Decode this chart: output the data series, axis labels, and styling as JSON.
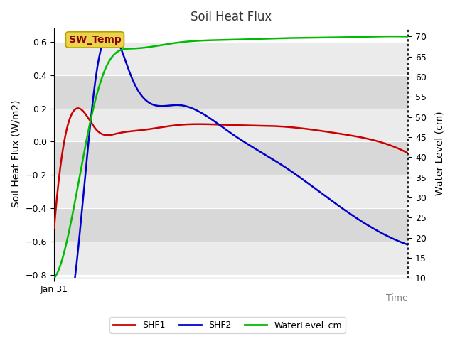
{
  "title": "Soil Heat Flux",
  "xlabel": "Time",
  "ylabel_left": "Soil Heat Flux (W/m2)",
  "ylabel_right": "Water Level (cm)",
  "x_tick_label": "Jan 31",
  "ylim_left": [
    -0.82,
    0.68
  ],
  "ylim_right": [
    10,
    72
  ],
  "yticks_left": [
    -0.8,
    -0.6,
    -0.4,
    -0.2,
    0.0,
    0.2,
    0.4,
    0.6
  ],
  "yticks_right": [
    10,
    15,
    20,
    25,
    30,
    35,
    40,
    45,
    50,
    55,
    60,
    65,
    70
  ],
  "annotation_text": "SW_Temp",
  "annotation_bg": "#e8d44d",
  "annotation_fg": "#8b0000",
  "annotation_edge": "#b8a000",
  "line_colors": {
    "SHF1": "#cc0000",
    "SHF2": "#0000cc",
    "WaterLevel_cm": "#00bb00"
  },
  "band_light": "#ebebeb",
  "band_dark": "#d8d8d8",
  "shf1_x": [
    0.0,
    0.07,
    0.12,
    0.18,
    0.25,
    0.35,
    0.5,
    0.65,
    0.8,
    0.9,
    1.0
  ],
  "shf1_y": [
    -0.52,
    0.2,
    0.07,
    0.05,
    0.07,
    0.1,
    0.1,
    0.09,
    0.05,
    0.01,
    -0.07
  ],
  "shf2_x": [
    0.0,
    0.07,
    0.12,
    0.22,
    0.35,
    0.5,
    0.65,
    0.8,
    0.9,
    1.0
  ],
  "shf2_y": [
    -0.8,
    -0.6,
    0.42,
    0.38,
    0.22,
    0.05,
    -0.15,
    -0.38,
    -0.52,
    -0.62
  ],
  "wl_x": [
    0.0,
    0.05,
    0.1,
    0.15,
    0.22,
    0.35,
    0.5,
    0.65,
    0.8,
    0.9,
    1.0
  ],
  "wl_y": [
    10,
    25,
    48,
    63,
    67,
    68.5,
    69.2,
    69.6,
    69.8,
    70,
    70
  ]
}
